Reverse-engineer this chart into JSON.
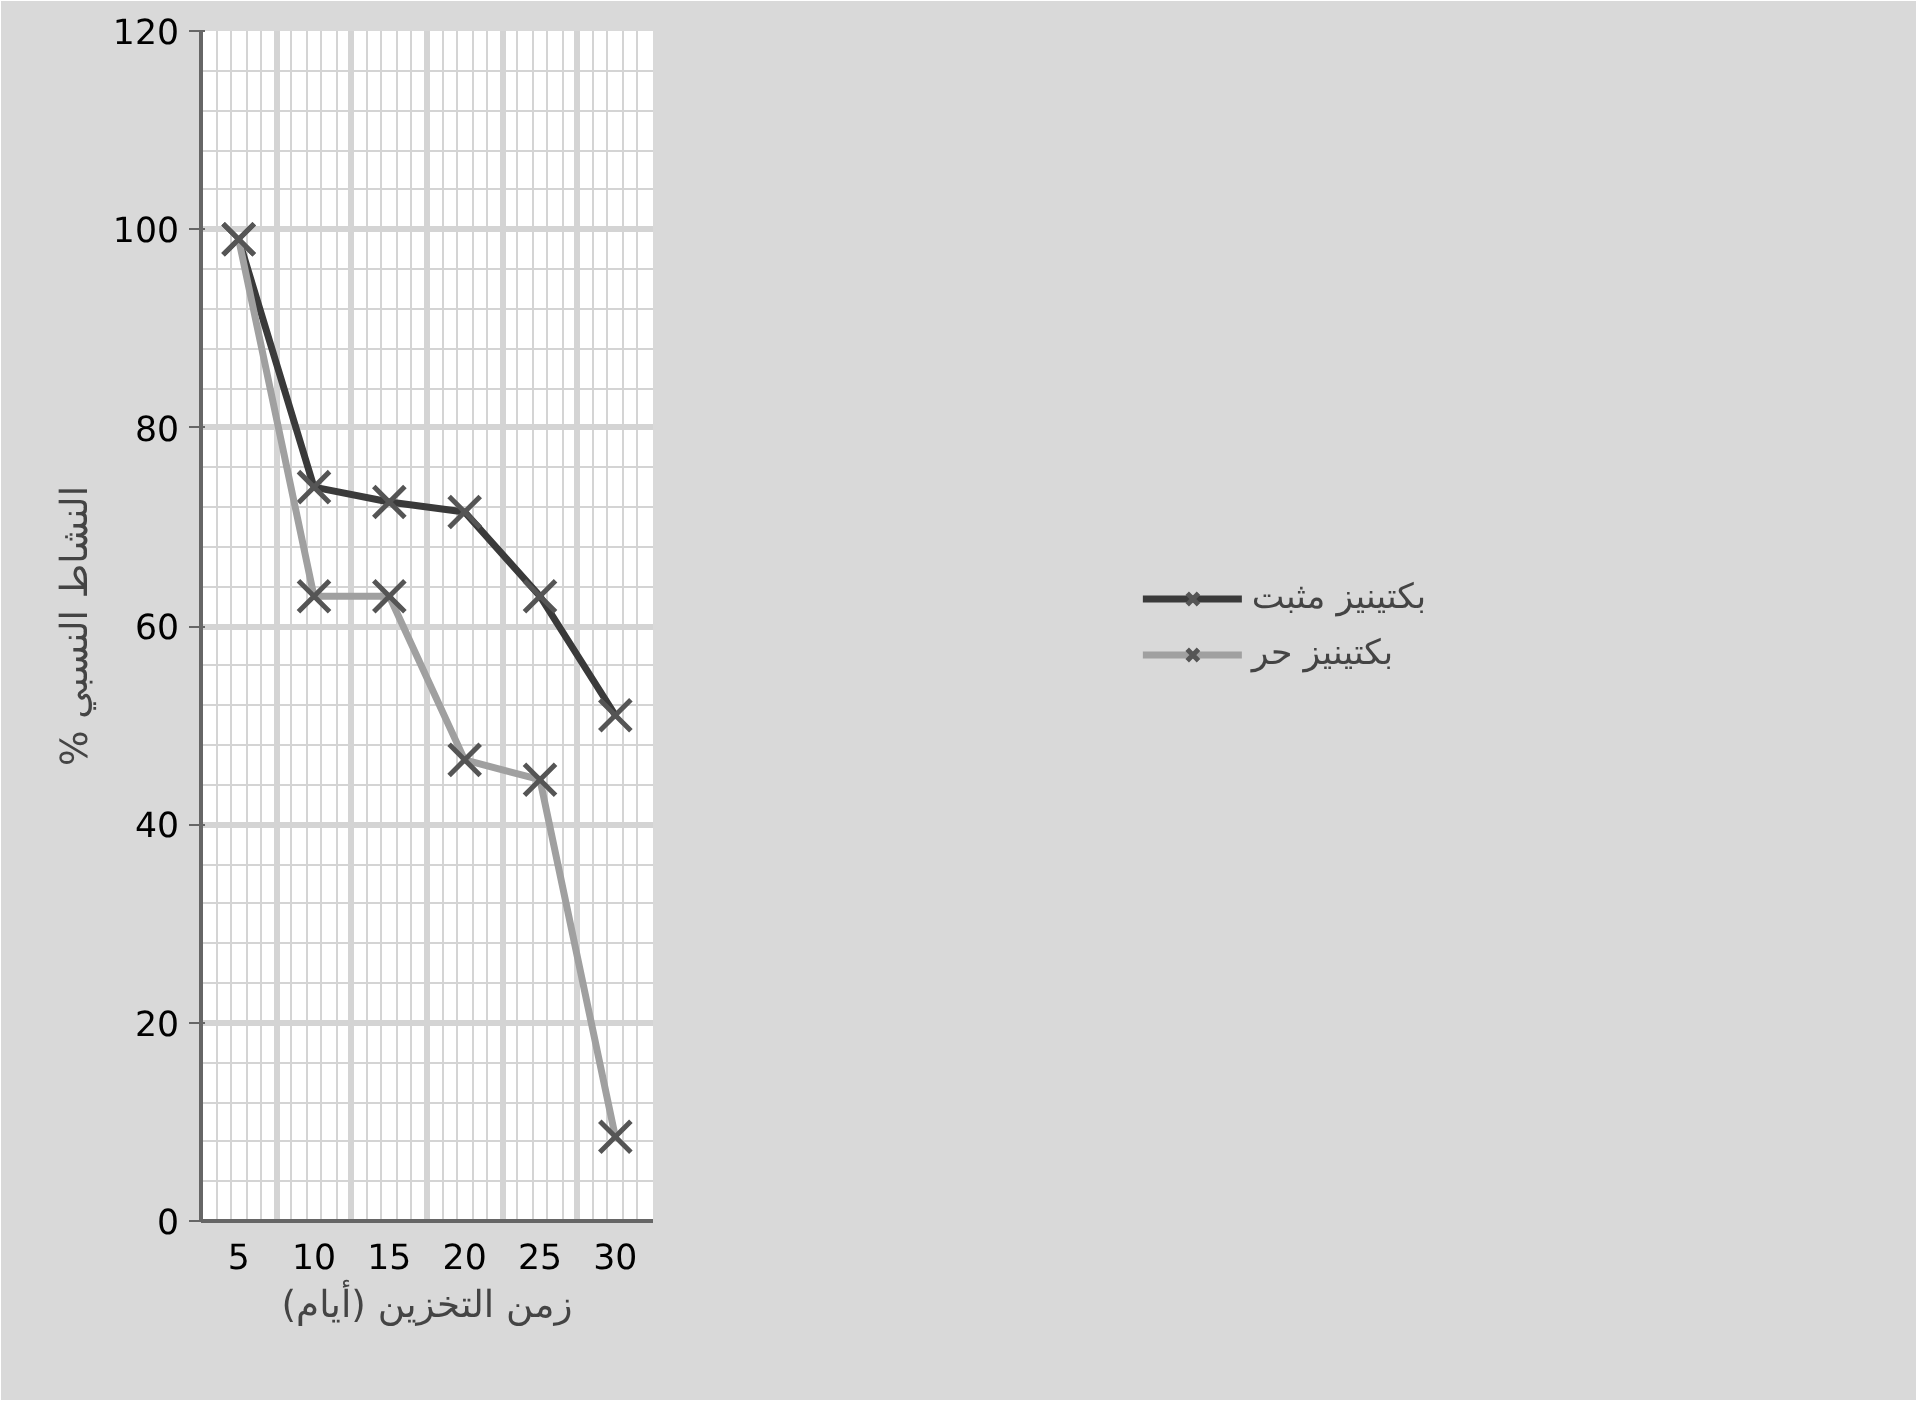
{
  "chart_data": {
    "type": "line",
    "xlabel": "زمن التخزين (أيام)",
    "ylabel": "% النشاط النسبي",
    "categories": [
      "5",
      "10",
      "15",
      "20",
      "25",
      "30"
    ],
    "series": [
      {
        "name": "بكتينيز مثبت",
        "color": "#3a3a3a",
        "values": [
          99,
          74,
          72.5,
          71.5,
          63,
          51
        ]
      },
      {
        "name": "بكتينيز حر",
        "color": "#a0a0a0",
        "values": [
          99,
          63,
          63,
          46.5,
          44.5,
          8.5
        ]
      }
    ],
    "ylim": [
      0,
      120
    ],
    "yticks": [
      0,
      20,
      40,
      60,
      80,
      100,
      120
    ],
    "grid": true,
    "legend": "right",
    "marker": "cross",
    "line_style": "solid"
  }
}
